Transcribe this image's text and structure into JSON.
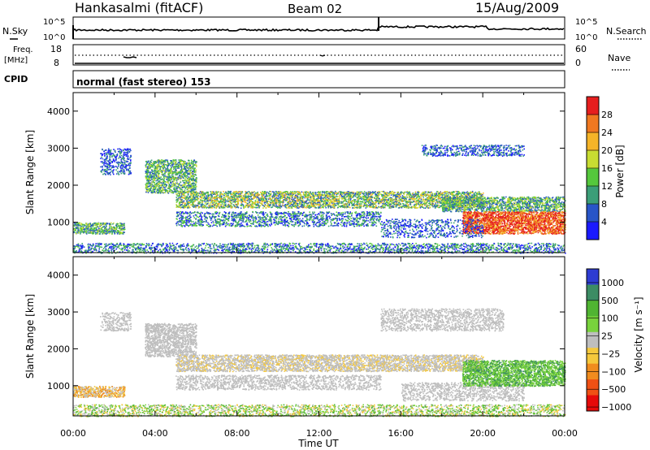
{
  "header": {
    "station": "Hankasalmi (fitACF)",
    "beam": "Beam 02",
    "date": "15/Aug/2009"
  },
  "top_panel": {
    "left_label": "N.Sky",
    "left_ticks": [
      "10^5",
      "10^0"
    ],
    "right_label": "N.Search",
    "right_ticks": [
      "10^5",
      "10^0"
    ]
  },
  "freq_panel": {
    "left_label_1": "Freq.",
    "left_label_2": "[MHz]",
    "left_ticks": [
      "18",
      "8"
    ],
    "right_label": "Nave",
    "right_ticks": [
      "60",
      "0"
    ]
  },
  "cpid_panel": {
    "label": "CPID",
    "text": "normal (fast stereo) 153"
  },
  "chart_data": [
    {
      "type": "heatmap",
      "name": "power",
      "ylabel": "Slant Range [km]",
      "ylim": [
        180,
        4500
      ],
      "y_ticks": [
        "1000",
        "2000",
        "3000",
        "4000"
      ],
      "xlim": [
        0,
        24
      ],
      "colorbar": {
        "label": "Power [dB]",
        "ticks": [
          "4",
          "8",
          "12",
          "16",
          "20",
          "24",
          "28"
        ],
        "colors": [
          "#1a1aff",
          "#2855c8",
          "#3b9e78",
          "#55c83c",
          "#c8dc32",
          "#f5b428",
          "#f07820",
          "#e61e1e"
        ]
      }
    },
    {
      "type": "heatmap",
      "name": "velocity",
      "ylabel": "Slant Range [km]",
      "ylim": [
        180,
        4500
      ],
      "y_ticks": [
        "1000",
        "2000",
        "3000",
        "4000"
      ],
      "xlim": [
        0,
        24
      ],
      "x_ticks": [
        "00:00",
        "04:00",
        "08:00",
        "12:00",
        "16:00",
        "20:00",
        "00:00"
      ],
      "xlabel": "Time UT",
      "colorbar": {
        "label": "Velocity [m s⁻¹]",
        "ticks": [
          "1000",
          "500",
          "100",
          "25",
          "−25",
          "−100",
          "−500",
          "−1000"
        ],
        "colors": [
          "#2e3cd2",
          "#3c8c64",
          "#50b432",
          "#78d23c",
          "#bebebe",
          "#f5c83c",
          "#f08c1e",
          "#f05014",
          "#e60a0a"
        ]
      }
    }
  ]
}
